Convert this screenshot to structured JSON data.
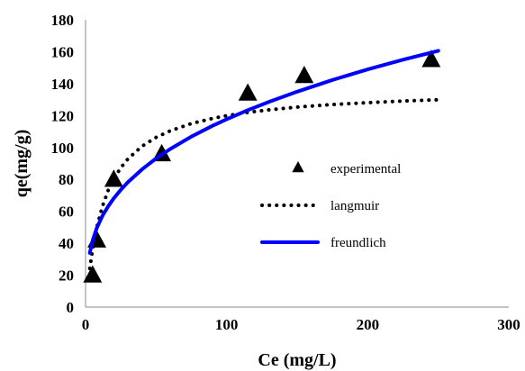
{
  "chart_data": {
    "type": "scatter",
    "xlabel": "Ce (mg/L)",
    "ylabel": "qe(mg/g)",
    "xlim": [
      0,
      300
    ],
    "ylim": [
      0,
      180
    ],
    "xticks": [
      0,
      100,
      200,
      300
    ],
    "yticks": [
      0,
      20,
      40,
      60,
      80,
      100,
      120,
      140,
      160,
      180
    ],
    "grid": false,
    "legend_position": "right-center",
    "series": [
      {
        "name": "experimental",
        "kind": "markers",
        "marker": "triangle",
        "color": "#000000",
        "x": [
          5,
          8,
          20,
          54,
          115,
          155,
          245
        ],
        "y": [
          20,
          42,
          80,
          96,
          134,
          145,
          155
        ]
      },
      {
        "name": "langmuir",
        "kind": "dotted-line",
        "color": "#000000",
        "x": [
          3,
          5,
          8,
          12,
          16,
          20,
          25,
          30,
          40,
          50,
          60,
          75,
          90,
          100,
          115,
          130,
          150,
          175,
          200,
          225,
          250
        ],
        "y": [
          24.2,
          36.0,
          50.0,
          63.2,
          73.0,
          80.4,
          87.3,
          92.8,
          100.8,
          106.3,
          110.4,
          115.0,
          118.2,
          119.9,
          122.0,
          123.6,
          125.3,
          126.9,
          128.1,
          129.1,
          129.9
        ]
      },
      {
        "name": "freundlich",
        "kind": "solid-line",
        "color": "#0000ff",
        "x": [
          3,
          5,
          8,
          12,
          16,
          20,
          25,
          30,
          40,
          50,
          60,
          75,
          90,
          100,
          115,
          130,
          150,
          175,
          200,
          225,
          250
        ],
        "y": [
          33.9,
          41.6,
          49.6,
          57.2,
          63.1,
          68.1,
          73.5,
          78.2,
          86.3,
          93.1,
          99.0,
          106.8,
          113.6,
          117.7,
          123.4,
          128.6,
          135.0,
          142.3,
          148.9,
          155.0,
          160.6
        ]
      }
    ]
  }
}
